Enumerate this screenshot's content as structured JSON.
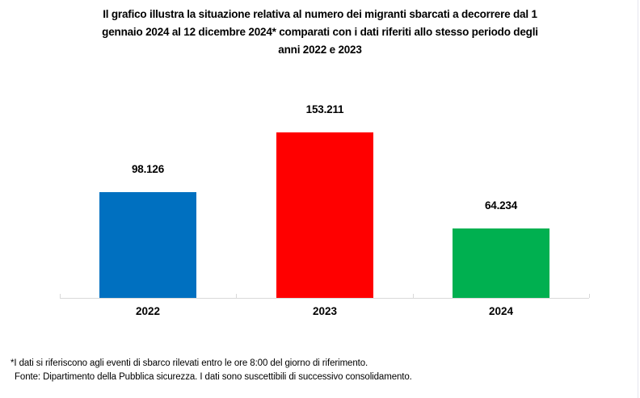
{
  "title": {
    "lines": [
      "Il grafico illustra la situazione relativa al numero dei migranti sbarcati a decorrere dal 1",
      "gennaio 2024 al 12 dicembre 2024* comparati con i dati riferiti allo stesso periodo degli",
      "anni 2022 e 2023"
    ]
  },
  "chart_data": {
    "type": "bar",
    "title": "Il grafico illustra la situazione relativa al numero dei migranti sbarcati a decorrere dal 1 gennaio 2024 al 12 dicembre 2024* comparati con i dati riferiti allo stesso periodo degli anni 2022 e 2023",
    "categories": [
      "2022",
      "2023",
      "2024"
    ],
    "values": [
      98126,
      153211,
      64234
    ],
    "value_labels": [
      "98.126",
      "153.211",
      "64.234"
    ],
    "bar_colors": [
      "#0070C0",
      "#FF0000",
      "#00B050"
    ],
    "xlabel": "",
    "ylabel": "",
    "ylim": [
      0,
      160000
    ],
    "grid": false,
    "legend": "none",
    "axis_line_color": "#D9D9D9",
    "value_label_position": "above-bar",
    "text_color": "#000000"
  },
  "footnotes": {
    "line1": "*I dati si riferiscono agli eventi di sbarco rilevati entro le ore 8:00 del giorno di riferimento.",
    "line2": "Fonte: Dipartimento della Pubblica sicurezza. I dati sono suscettibili di successivo consolidamento."
  }
}
